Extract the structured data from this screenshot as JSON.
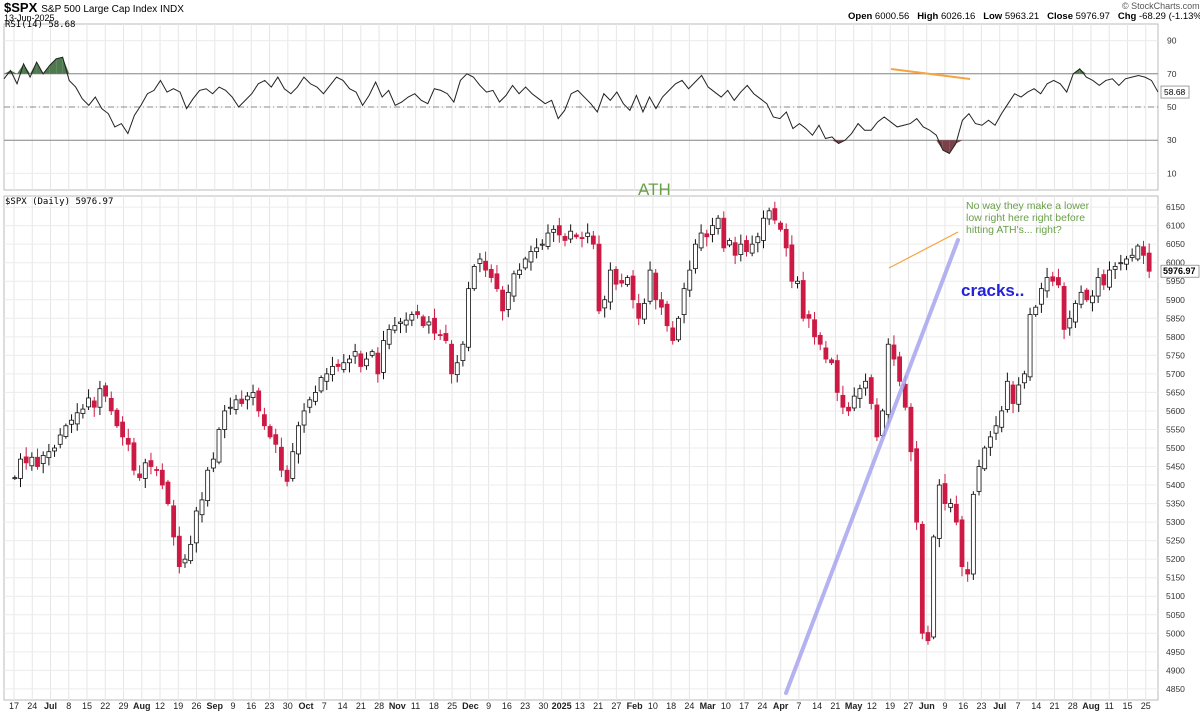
{
  "header": {
    "symbol": "$SPX",
    "description": "S&P 500 Large Cap Index  INDX",
    "date": "13-Jun-2025",
    "open_label": "Open",
    "open": "6000.56",
    "high_label": "High",
    "high": "6026.16",
    "low_label": "Low",
    "low": "5963.21",
    "close_label": "Close",
    "close": "5976.97",
    "chg_label": "Chg",
    "chg": "-68.29 (-1.13%)",
    "credit": "© StockCharts.com"
  },
  "colors": {
    "up": "#111111",
    "down": "#cc1a44",
    "rsi_line": "#222222",
    "rsi_overbought_fill": "#4f7a4f",
    "rsi_oversold_fill": "#7a4148",
    "trendline": "#a9a5f0",
    "orange": "#f5a440",
    "ath_text": "#6aa04a",
    "note_text": "#6aa04a",
    "cracks_text": "#2222dd"
  },
  "chart_data": [
    {
      "type": "line",
      "title": "RSI(14) 58.68",
      "series": [
        {
          "name": "RSI(14)",
          "values": [
            67,
            72,
            64,
            76,
            68,
            77,
            70,
            75,
            79,
            80,
            66,
            62,
            55,
            51,
            56,
            49,
            46,
            38,
            40,
            34,
            45,
            51,
            58,
            60,
            66,
            59,
            61,
            59,
            49,
            55,
            60,
            61,
            58,
            62,
            60,
            56,
            50,
            54,
            58,
            64,
            66,
            62,
            68,
            61,
            58,
            62,
            68,
            64,
            62,
            58,
            63,
            68,
            66,
            61,
            59,
            51,
            57,
            65,
            56,
            60,
            51,
            53,
            56,
            58,
            54,
            52,
            61,
            60,
            58,
            53,
            66,
            70,
            68,
            63,
            59,
            60,
            53,
            57,
            63,
            58,
            62,
            58,
            55,
            52,
            54,
            43,
            48,
            58,
            60,
            56,
            52,
            47,
            58,
            54,
            59,
            52,
            48,
            57,
            47,
            56,
            49,
            56,
            60,
            64,
            66,
            61,
            65,
            69,
            62,
            59,
            56,
            60,
            54,
            59,
            63,
            58,
            55,
            52,
            44,
            43,
            47,
            37,
            40,
            37,
            33,
            39,
            31,
            32,
            28,
            30,
            34,
            40,
            36,
            36,
            41,
            44,
            41,
            38,
            39,
            40,
            43,
            38,
            36,
            33,
            24,
            22,
            28,
            42,
            46,
            40,
            39,
            42,
            39,
            46,
            52,
            58,
            56,
            59,
            61,
            58,
            64,
            66,
            64,
            59,
            70,
            73,
            68,
            66,
            63,
            66,
            67,
            63,
            67,
            68,
            69,
            68,
            66,
            59
          ]
        }
      ],
      "ylim": [
        0,
        100
      ],
      "y_ticks": [
        10,
        30,
        50,
        70,
        90
      ],
      "reference_lines": [
        30,
        50,
        70
      ],
      "last_value_label": "58.68"
    },
    {
      "type": "candlestick",
      "title": "$SPX (Daily) 5976.97",
      "ylim": [
        4820,
        6180
      ],
      "y_ticks": [
        4850,
        4900,
        4950,
        5000,
        5050,
        5100,
        5150,
        5200,
        5250,
        5300,
        5350,
        5400,
        5450,
        5500,
        5550,
        5600,
        5650,
        5700,
        5750,
        5800,
        5850,
        5900,
        5950,
        6000,
        6050,
        6100,
        6150
      ],
      "last_value_label": "5976.97",
      "x_tick_labels": [
        "17",
        "24",
        "Jul",
        "8",
        "15",
        "22",
        "29",
        "Aug",
        "12",
        "19",
        "26",
        "Sep",
        "9",
        "16",
        "23",
        "30",
        "Oct",
        "7",
        "14",
        "21",
        "28",
        "Nov",
        "11",
        "18",
        "25",
        "Dec",
        "9",
        "16",
        "23",
        "30",
        "2025",
        "13",
        "21",
        "27",
        "Feb",
        "10",
        "18",
        "24",
        "Mar",
        "10",
        "17",
        "24",
        "Apr",
        "7",
        "14",
        "21",
        "May",
        "12",
        "19",
        "27",
        "Jun",
        "9",
        "16",
        "23",
        "Jul",
        "7",
        "14",
        "21",
        "28",
        "Aug",
        "11",
        "15",
        "25"
      ],
      "close": [
        5420,
        5470,
        5460,
        5475,
        5450,
        5480,
        5490,
        5500,
        5535,
        5560,
        5575,
        5595,
        5605,
        5635,
        5610,
        5660,
        5640,
        5600,
        5560,
        5530,
        5510,
        5440,
        5420,
        5460,
        5450,
        5440,
        5400,
        5350,
        5260,
        5180,
        5200,
        5240,
        5330,
        5360,
        5440,
        5470,
        5550,
        5600,
        5610,
        5630,
        5620,
        5640,
        5650,
        5600,
        5560,
        5530,
        5510,
        5440,
        5410,
        5490,
        5560,
        5600,
        5630,
        5650,
        5690,
        5700,
        5720,
        5720,
        5730,
        5740,
        5760,
        5720,
        5740,
        5760,
        5700,
        5790,
        5820,
        5830,
        5840,
        5845,
        5860,
        5860,
        5830,
        5840,
        5810,
        5805,
        5790,
        5700,
        5730,
        5780,
        5930,
        5990,
        6010,
        5980,
        5960,
        5930,
        5870,
        5920,
        5970,
        5980,
        6010,
        6030,
        6040,
        6050,
        6080,
        6090,
        6075,
        6060,
        6085,
        6070,
        6065,
        6080,
        6050,
        5870,
        5900,
        5980,
        5942,
        5945,
        5960,
        5900,
        5850,
        5890,
        5980,
        5900,
        5880,
        5830,
        5790,
        5850,
        5930,
        5980,
        6050,
        6080,
        6070,
        6100,
        6120,
        6040,
        6060,
        6020,
        6050,
        6030,
        6050,
        6070,
        6120,
        6140,
        6115,
        6090,
        6040,
        5950,
        5950,
        5850,
        5850,
        5800,
        5780,
        5740,
        5730,
        5650,
        5610,
        5600,
        5640,
        5660,
        5680,
        5620,
        5530,
        5600,
        5780,
        5740,
        5680,
        5610,
        5490,
        5300,
        5000,
        4980,
        5260,
        5400,
        5350,
        5350,
        5300,
        5180,
        5160,
        5375,
        5450,
        5500,
        5530,
        5560,
        5600,
        5680,
        5620,
        5670,
        5700,
        5860,
        5880,
        5930,
        5960,
        5950,
        5940,
        5820,
        5850,
        5890,
        5920,
        5900,
        5910,
        5960,
        5940,
        5980,
        5990,
        6000,
        6010,
        6020,
        6045,
        6020,
        5976.97
      ],
      "annotations": [
        "ATH",
        "No way they make a lower\nlow right here right before\nhitting ATH's... right?",
        "cracks.."
      ]
    }
  ]
}
